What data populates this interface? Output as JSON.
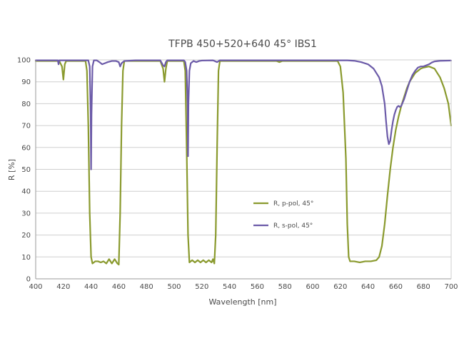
{
  "chart_data": {
    "type": "line",
    "title": "TFPB 450+520+640 45° IBS1",
    "xlabel": "Wavelength [nm]",
    "ylabel": "R [%]",
    "xlim": [
      400,
      700
    ],
    "ylim": [
      0,
      100
    ],
    "xticks": [
      400,
      420,
      440,
      460,
      480,
      500,
      520,
      540,
      560,
      580,
      600,
      620,
      640,
      660,
      680,
      700
    ],
    "yticks": [
      0,
      10,
      20,
      30,
      40,
      50,
      60,
      70,
      80,
      90,
      100
    ],
    "grid": "horizontal",
    "legend_position": "center-right",
    "series": [
      {
        "name": "R, p-pol, 45°",
        "color": "#8a9a2e",
        "points": [
          [
            400,
            99.5
          ],
          [
            417,
            99.5
          ],
          [
            419,
            97
          ],
          [
            420,
            91
          ],
          [
            421,
            98
          ],
          [
            422,
            99.5
          ],
          [
            436,
            99.5
          ],
          [
            437,
            95
          ],
          [
            438,
            70
          ],
          [
            439,
            30
          ],
          [
            440,
            10
          ],
          [
            441,
            7
          ],
          [
            443,
            8
          ],
          [
            445,
            8
          ],
          [
            447,
            7.5
          ],
          [
            449,
            8
          ],
          [
            451,
            7
          ],
          [
            453,
            9
          ],
          [
            455,
            7
          ],
          [
            457,
            9
          ],
          [
            459,
            7
          ],
          [
            460,
            6.5
          ],
          [
            461,
            30
          ],
          [
            462,
            70
          ],
          [
            463,
            95
          ],
          [
            464,
            99.5
          ],
          [
            490,
            99.5
          ],
          [
            492,
            96
          ],
          [
            493,
            90
          ],
          [
            494,
            96
          ],
          [
            495,
            99.5
          ],
          [
            507,
            99.5
          ],
          [
            508,
            95
          ],
          [
            509,
            60
          ],
          [
            510,
            20
          ],
          [
            511,
            7.5
          ],
          [
            513,
            8.5
          ],
          [
            515,
            7.5
          ],
          [
            517,
            8.5
          ],
          [
            519,
            7.5
          ],
          [
            521,
            8.5
          ],
          [
            523,
            7.5
          ],
          [
            525,
            8.5
          ],
          [
            527,
            7.5
          ],
          [
            528,
            9
          ],
          [
            529,
            7
          ],
          [
            530,
            20
          ],
          [
            531,
            60
          ],
          [
            532,
            95
          ],
          [
            533,
            99.5
          ],
          [
            574,
            99.5
          ],
          [
            576,
            99
          ],
          [
            578,
            99.5
          ],
          [
            618,
            99.5
          ],
          [
            620,
            97
          ],
          [
            622,
            85
          ],
          [
            624,
            55
          ],
          [
            625,
            25
          ],
          [
            626,
            10
          ],
          [
            627,
            8
          ],
          [
            630,
            8
          ],
          [
            634,
            7.5
          ],
          [
            638,
            8
          ],
          [
            642,
            8
          ],
          [
            646,
            8.5
          ],
          [
            648,
            10
          ],
          [
            650,
            15
          ],
          [
            652,
            25
          ],
          [
            654,
            38
          ],
          [
            656,
            50
          ],
          [
            658,
            60
          ],
          [
            660,
            68
          ],
          [
            662,
            74
          ],
          [
            664,
            79
          ],
          [
            666,
            83
          ],
          [
            668,
            87
          ],
          [
            670,
            90
          ],
          [
            672,
            92
          ],
          [
            674,
            94
          ],
          [
            676,
            95
          ],
          [
            678,
            96
          ],
          [
            680,
            96.5
          ],
          [
            684,
            97
          ],
          [
            688,
            96
          ],
          [
            692,
            92
          ],
          [
            695,
            87
          ],
          [
            698,
            80
          ],
          [
            700,
            70
          ]
        ]
      },
      {
        "name": "R, s-pol, 45°",
        "color": "#6b5aa8",
        "points": [
          [
            400,
            99.8
          ],
          [
            416,
            99.8
          ],
          [
            416.5,
            98
          ],
          [
            417,
            99.8
          ],
          [
            438,
            99.8
          ],
          [
            439,
            97
          ],
          [
            439.7,
            75
          ],
          [
            440,
            50
          ],
          [
            440.3,
            75
          ],
          [
            441,
            97
          ],
          [
            442,
            99.8
          ],
          [
            444,
            99.8
          ],
          [
            446,
            99
          ],
          [
            448,
            98
          ],
          [
            450,
            98.5
          ],
          [
            452,
            99
          ],
          [
            455,
            99.5
          ],
          [
            458,
            99.5
          ],
          [
            460,
            99
          ],
          [
            461,
            97
          ],
          [
            462,
            98.5
          ],
          [
            464,
            99.5
          ],
          [
            472,
            99.8
          ],
          [
            490,
            99.8
          ],
          [
            492,
            97.5
          ],
          [
            493,
            97
          ],
          [
            494,
            99
          ],
          [
            495,
            99.8
          ],
          [
            507,
            99.8
          ],
          [
            508,
            99
          ],
          [
            509,
            95
          ],
          [
            509.7,
            80
          ],
          [
            510,
            56
          ],
          [
            510.3,
            80
          ],
          [
            511,
            95
          ],
          [
            512,
            98.5
          ],
          [
            514,
            99.5
          ],
          [
            516,
            99
          ],
          [
            518,
            99.5
          ],
          [
            520,
            99.7
          ],
          [
            528,
            99.8
          ],
          [
            531,
            99
          ],
          [
            533,
            99.8
          ],
          [
            536,
            99.8
          ],
          [
            620,
            99.8
          ],
          [
            625,
            99.8
          ],
          [
            630,
            99.6
          ],
          [
            635,
            99
          ],
          [
            640,
            98
          ],
          [
            644,
            96
          ],
          [
            648,
            92
          ],
          [
            650,
            88
          ],
          [
            652,
            80
          ],
          [
            653,
            72
          ],
          [
            654,
            65
          ],
          [
            655,
            61.5
          ],
          [
            656,
            63
          ],
          [
            657,
            68
          ],
          [
            658,
            72
          ],
          [
            659,
            75
          ],
          [
            660,
            77
          ],
          [
            661,
            78.5
          ],
          [
            662,
            79
          ],
          [
            663,
            78.5
          ],
          [
            664,
            79
          ],
          [
            666,
            82
          ],
          [
            668,
            86
          ],
          [
            670,
            90
          ],
          [
            672,
            93
          ],
          [
            674,
            95
          ],
          [
            676,
            96.5
          ],
          [
            678,
            97
          ],
          [
            680,
            97
          ],
          [
            682,
            97.5
          ],
          [
            684,
            98
          ],
          [
            686,
            98.8
          ],
          [
            688,
            99.3
          ],
          [
            692,
            99.6
          ],
          [
            700,
            99.7
          ]
        ]
      }
    ]
  }
}
